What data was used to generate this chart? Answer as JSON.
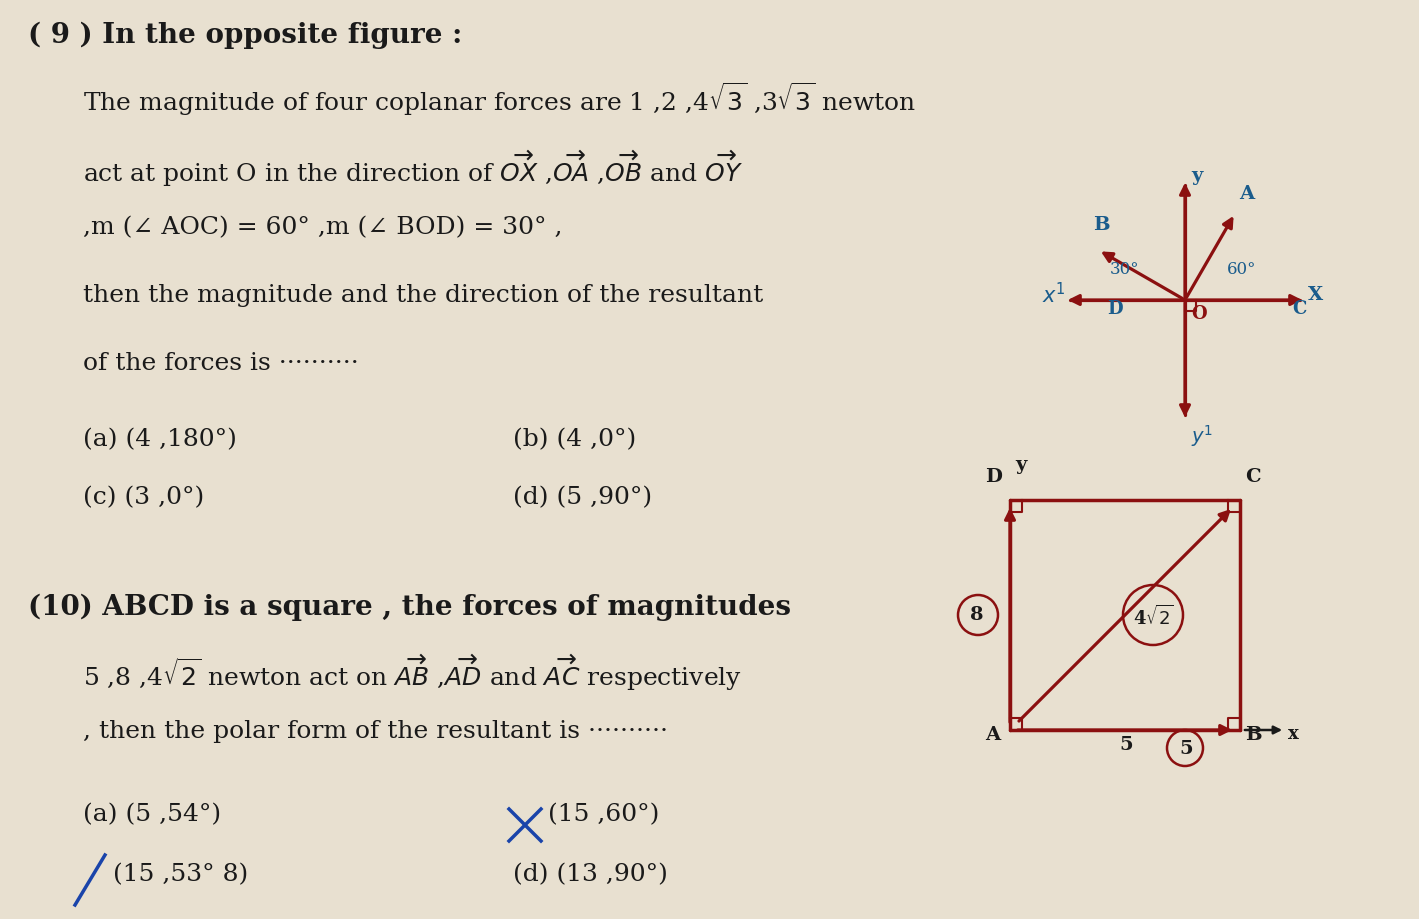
{
  "bg_color": "#e8e0d0",
  "q9_title": "( 9 ) In the opposite figure :",
  "q9_line1": "The magnitude of four coplanar forces are 1 ,2 ,4$\\sqrt{3}$ ,3$\\sqrt{3}$ newton",
  "q9_line2": "act at point O in the direction of $\\overrightarrow{OX}$ ,$\\overrightarrow{OA}$ ,$\\overrightarrow{OB}$ and $\\overrightarrow{OY}$",
  "q9_line3": ",m (∠ AOC) = 60° ,m (∠ BOD) = 30° ,",
  "q9_line4": "then the magnitude and the direction of the resultant",
  "q9_line5": "of the forces is ··········",
  "q9_ans_a": "(a) (4 ,180°)",
  "q9_ans_b": "(b) (4 ,0°)",
  "q9_ans_c": "(c) (3 ,0°)",
  "q9_ans_d": "(d) (5 ,90°)",
  "q10_title": "(10) ABCD is a square , the forces of magnitudes",
  "q10_line1": "5 ,8 ,4$\\sqrt{2}$ newton act on $\\overrightarrow{AB}$ ,$\\overrightarrow{AD}$ and $\\overrightarrow{AC}$ respectively",
  "q10_line2": ", then the polar form of the resultant is ··········",
  "q10_ans_a": "(a) (5 ,54°)",
  "q10_ans_b": "(15 ,60°)",
  "q10_ans_c": "(15 ,53° 8)",
  "q10_ans_d": "(d) (13 ,90°)",
  "arrow_color": "#8b1010",
  "label_color": "#1a5c8c",
  "text_color": "#1a1a1a",
  "strike_color": "#1a44aa"
}
